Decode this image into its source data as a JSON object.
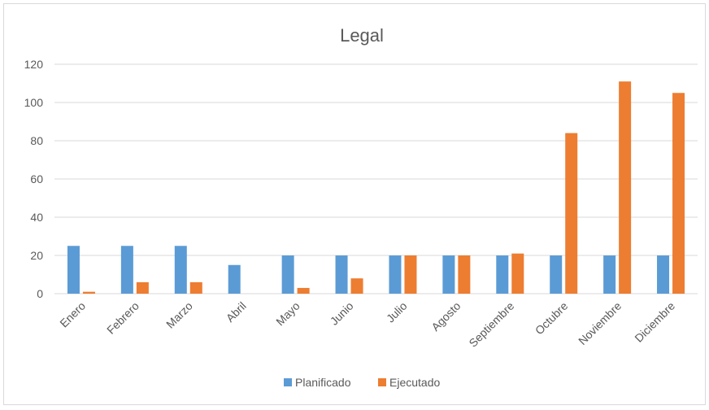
{
  "chart_data": {
    "type": "bar",
    "title": "Legal",
    "xlabel": "",
    "ylabel": "",
    "categories": [
      "Enero",
      "Febrero",
      "Marzo",
      "Abril",
      "Mayo",
      "Junio",
      "Julio",
      "Agosto",
      "Septiembre",
      "Octubre",
      "Noviembre",
      "Diciembre"
    ],
    "series": [
      {
        "name": "Planificado",
        "color": "#5b9bd5",
        "values": [
          25,
          25,
          25,
          15,
          20,
          20,
          20,
          20,
          20,
          20,
          20,
          20
        ]
      },
      {
        "name": "Ejecutado",
        "color": "#ed7d31",
        "values": [
          1,
          6,
          6,
          0,
          3,
          8,
          20,
          20,
          21,
          84,
          111,
          105
        ]
      }
    ],
    "ylim": [
      0,
      120
    ],
    "yticks": [
      0,
      20,
      40,
      60,
      80,
      100,
      120
    ],
    "grid": true,
    "legend_position": "bottom"
  }
}
